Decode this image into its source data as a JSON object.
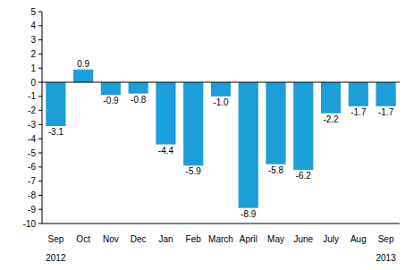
{
  "chart_data": {
    "type": "bar",
    "categories": [
      "Sep",
      "Oct",
      "Nov",
      "Dec",
      "Jan",
      "Feb",
      "March",
      "April",
      "May",
      "June",
      "July",
      "Aug",
      "Sep"
    ],
    "values": [
      -3.1,
      0.9,
      -0.9,
      -0.8,
      -4.4,
      -5.9,
      -1.0,
      -8.9,
      -5.8,
      -6.2,
      -2.2,
      -1.7,
      -1.7
    ],
    "value_labels": [
      "-3.1",
      "0.9",
      "-0.9",
      "-0.8",
      "-4.4",
      "-5.9",
      "-1.0",
      "-8.9",
      "-5.8",
      "-6.2",
      "-2.2",
      "-1.7",
      "-1.7"
    ],
    "color": "#1c9ed8",
    "ylim": [
      -10,
      5
    ],
    "yticks": [
      -10,
      -9,
      -8,
      -7,
      -6,
      -5,
      -4,
      -3,
      -2,
      -1,
      0,
      1,
      2,
      3,
      4,
      5
    ],
    "grid": false,
    "data_labels": true,
    "annotations": [
      "2012",
      "2013"
    ]
  }
}
